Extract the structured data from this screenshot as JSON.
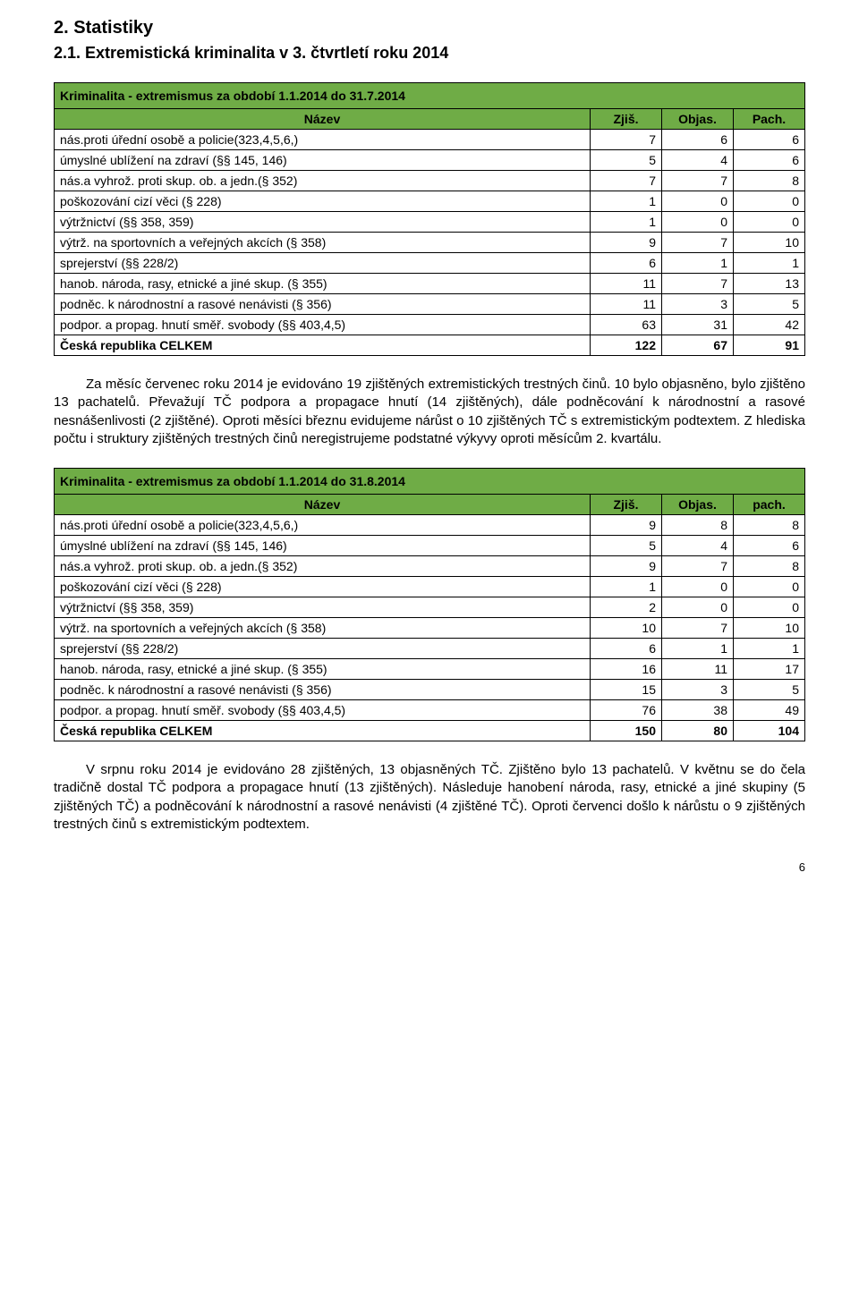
{
  "headings": {
    "h2": "2. Statistiky",
    "h3": "2.1. Extremistická kriminalita v 3. čtvrtletí roku 2014"
  },
  "table1": {
    "title": "Kriminalita - extremismus za období 1.1.2014 do 31.7.2014",
    "header": {
      "name": "Název",
      "c1": "Zjiš.",
      "c2": "Objas.",
      "c3": "Pach."
    },
    "rows": [
      {
        "label": "nás.proti úřední osobě a policie(323,4,5,6,)",
        "v": [
          7,
          6,
          6
        ]
      },
      {
        "label": "úmyslné ublížení na zdraví (§§ 145, 146)",
        "v": [
          5,
          4,
          6
        ]
      },
      {
        "label": "nás.a vyhrož. proti skup. ob. a jedn.(§ 352)",
        "v": [
          7,
          7,
          8
        ]
      },
      {
        "label": "poškozování cizí věci (§ 228)",
        "v": [
          1,
          0,
          0
        ]
      },
      {
        "label": "výtržnictví (§§ 358, 359)",
        "v": [
          1,
          0,
          0
        ]
      },
      {
        "label": "výtrž. na sportovních a veřejných akcích (§ 358)",
        "v": [
          9,
          7,
          10
        ]
      },
      {
        "label": "sprejerství (§§ 228/2)",
        "v": [
          6,
          1,
          1
        ]
      },
      {
        "label": "hanob. národa, rasy, etnické a jiné skup. (§ 355)",
        "v": [
          11,
          7,
          13
        ]
      },
      {
        "label": "podněc. k národnostní a rasové nenávisti (§ 356)",
        "v": [
          11,
          3,
          5
        ]
      },
      {
        "label": "podpor. a propag. hnutí směř. svobody (§§ 403,4,5)",
        "v": [
          63,
          31,
          42
        ]
      }
    ],
    "total": {
      "label": "Česká republika CELKEM",
      "v": [
        122,
        67,
        91
      ]
    },
    "green": "#6fac46"
  },
  "para1": "Za měsíc červenec roku 2014 je evidováno 19 zjištěných extremistických trestných činů. 10 bylo objasněno, bylo zjištěno 13 pachatelů. Převažují TČ podpora a propagace hnutí (14 zjištěných), dále podněcování k národnostní a rasové nesnášenlivosti (2 zjištěné). Oproti měsíci březnu evidujeme nárůst o 10 zjištěných TČ s extremistickým podtextem. Z hlediska počtu i struktury zjištěných trestných činů neregistrujeme podstatné výkyvy oproti měsícům 2. kvartálu.",
  "table2": {
    "title": "Kriminalita - extremismus za období 1.1.2014 do 31.8.2014",
    "header": {
      "name": "Název",
      "c1": "Zjiš.",
      "c2": "Objas.",
      "c3": "pach."
    },
    "rows": [
      {
        "label": "nás.proti úřední osobě a policie(323,4,5,6,)",
        "v": [
          9,
          8,
          8
        ]
      },
      {
        "label": "úmyslné ublížení na zdraví (§§ 145, 146)",
        "v": [
          5,
          4,
          6
        ]
      },
      {
        "label": "nás.a vyhrož. proti skup. ob. a jedn.(§ 352)",
        "v": [
          9,
          7,
          8
        ]
      },
      {
        "label": "poškozování cizí věci (§ 228)",
        "v": [
          1,
          0,
          0
        ]
      },
      {
        "label": "výtržnictví (§§ 358, 359)",
        "v": [
          2,
          0,
          0
        ]
      },
      {
        "label": "výtrž. na sportovních a veřejných akcích (§ 358)",
        "v": [
          10,
          7,
          10
        ]
      },
      {
        "label": "sprejerství (§§ 228/2)",
        "v": [
          6,
          1,
          1
        ]
      },
      {
        "label": "hanob. národa, rasy, etnické a jiné skup. (§ 355)",
        "v": [
          16,
          11,
          17
        ]
      },
      {
        "label": "podněc. k národnostní a rasové nenávisti (§ 356)",
        "v": [
          15,
          3,
          5
        ]
      },
      {
        "label": "podpor. a propag. hnutí směř. svobody (§§ 403,4,5)",
        "v": [
          76,
          38,
          49
        ]
      }
    ],
    "total": {
      "label": "Česká republika CELKEM",
      "v": [
        150,
        80,
        104
      ]
    },
    "green": "#6fac46"
  },
  "para2": "V srpnu roku 2014 je evidováno 28 zjištěných, 13 objasněných TČ. Zjištěno bylo 13 pachatelů. V květnu se do čela tradičně dostal TČ podpora a propagace hnutí (13 zjištěných). Následuje hanobení národa, rasy, etnické a jiné skupiny (5 zjištěných TČ) a podněcování k národnostní a rasové nenávisti (4 zjištěné TČ). Oproti červenci došlo k nárůstu o 9 zjištěných trestných činů s extremistickým podtextem.",
  "page_number": "6"
}
